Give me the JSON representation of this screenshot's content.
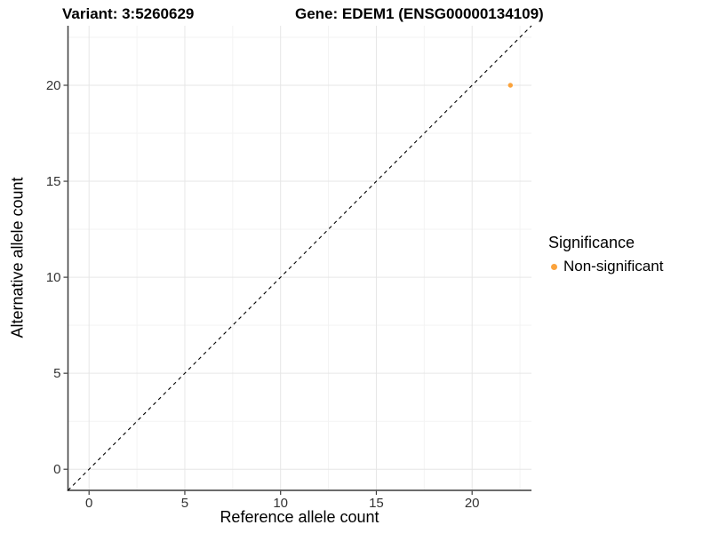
{
  "titles": {
    "variant": "Variant: 3:5260629",
    "gene": "Gene: EDEM1 (ENSG00000134109)"
  },
  "axes": {
    "x_label": "Reference allele count",
    "y_label": "Alternative allele count"
  },
  "legend": {
    "title": "Significance",
    "items": [
      {
        "label": "Non-significant",
        "color": "#FBA33C"
      }
    ]
  },
  "chart_data": {
    "type": "scatter",
    "title": "Variant: 3:5260629    Gene: EDEM1 (ENSG00000134109)",
    "xlabel": "Reference allele count",
    "ylabel": "Alternative allele count",
    "xlim": [
      -1.1,
      23.1
    ],
    "ylim": [
      -1.1,
      23.1
    ],
    "x_ticks": [
      0,
      5,
      10,
      15,
      20
    ],
    "y_ticks": [
      0,
      5,
      10,
      15,
      20
    ],
    "minor_ticks": [
      2.5,
      7.5,
      12.5,
      17.5,
      22.5
    ],
    "grid": true,
    "legend_position": "right",
    "series": [
      {
        "name": "Non-significant",
        "color": "#FBA33C",
        "points": [
          {
            "x": 22,
            "y": 20
          }
        ]
      }
    ],
    "reference_line": {
      "type": "identity",
      "style": "dashed",
      "color": "#000000",
      "from": [
        -1.1,
        -1.1
      ],
      "to": [
        23.1,
        23.1
      ]
    },
    "colors": {
      "grid_major": "#e6e6e6",
      "grid_minor": "#f3f3f3",
      "axis_line": "#3c3c3c",
      "tick_text": "#333333",
      "point": "#FBA33C"
    }
  }
}
